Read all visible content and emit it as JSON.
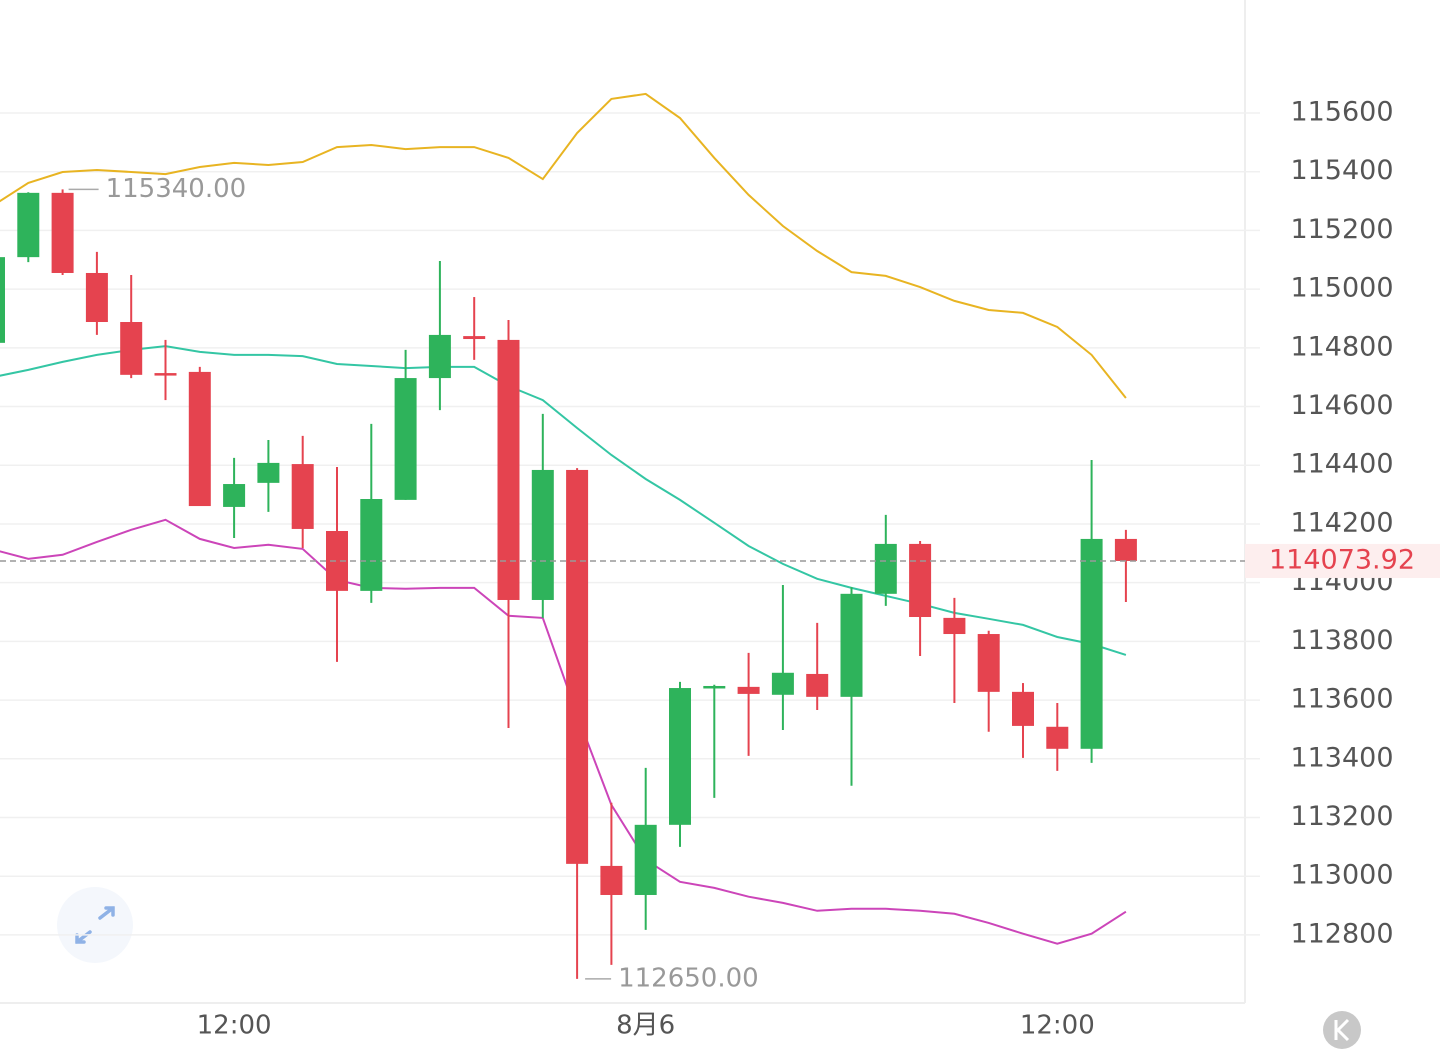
{
  "chart_data": {
    "type": "candlestick",
    "categories": [
      null,
      null,
      null,
      null,
      null,
      null,
      null,
      "12:00",
      null,
      null,
      null,
      null,
      null,
      null,
      null,
      null,
      null,
      null,
      null,
      "8月6",
      null,
      null,
      null,
      null,
      null,
      null,
      null,
      null,
      null,
      null,
      null,
      "12:00",
      null,
      null
    ],
    "open": [
      114817,
      115109,
      115328,
      115055,
      114888,
      114714,
      114718,
      114258,
      114340,
      114404,
      114176,
      113972,
      114282,
      114697,
      114840,
      114827,
      113941,
      114384,
      113035,
      112936,
      113175,
      113641,
      113645,
      113618,
      113689,
      113611,
      113962,
      114132,
      113880,
      113825,
      113628,
      113509,
      113434,
      114149
    ],
    "high": [
      115150,
      115330,
      115340,
      115127,
      115048,
      114827,
      114735,
      114425,
      114486,
      114500,
      114394,
      114541,
      114793,
      115096,
      114973,
      114895,
      114575,
      114390,
      113250,
      113369,
      113662,
      113652,
      113761,
      113992,
      113863,
      113985,
      114231,
      114142,
      113948,
      113836,
      113658,
      113590,
      114418,
      114180
    ],
    "low": [
      114780,
      115092,
      115048,
      114844,
      114697,
      114622,
      114261,
      114152,
      114241,
      114118,
      113730,
      113931,
      114282,
      114588,
      114759,
      113505,
      113880,
      112650,
      112698,
      112817,
      113100,
      113267,
      113410,
      113498,
      113566,
      113308,
      113921,
      113750,
      113590,
      113492,
      113403,
      113359,
      113386,
      113934
    ],
    "close": [
      115109,
      115328,
      115055,
      114888,
      114708,
      114710,
      114261,
      114336,
      114408,
      114183,
      113972,
      114285,
      114697,
      114844,
      114830,
      113941,
      114384,
      113042,
      112936,
      113175,
      113641,
      113648,
      113621,
      113693,
      113611,
      113962,
      114132,
      113883,
      113825,
      113628,
      113512,
      113434,
      114149,
      114073.92
    ],
    "up_color": "#2eb35b",
    "down_color": "#e5434f",
    "bands": [
      {
        "color": "#e8b422",
        "values": [
          115287,
          115362,
          115399,
          115406,
          115399,
          115392,
          115416,
          115430,
          115423,
          115433,
          115484,
          115491,
          115477,
          115484,
          115484,
          115447,
          115375,
          115532,
          115648,
          115665,
          115583,
          115447,
          115321,
          115215,
          115130,
          115058,
          115045,
          115007,
          114960,
          114929,
          114919,
          114871,
          114776,
          114629
        ]
      },
      {
        "color": "#34c6a4",
        "values": [
          114701,
          114725,
          114752,
          114776,
          114793,
          114806,
          114786,
          114776,
          114776,
          114772,
          114745,
          114738,
          114731,
          114735,
          114735,
          114670,
          114622,
          114527,
          114435,
          114353,
          114282,
          114204,
          114125,
          114064,
          114013,
          113982,
          113955,
          113928,
          113897,
          113877,
          113856,
          113815,
          113791,
          113754
        ]
      },
      {
        "color": "#cc45b9",
        "values": [
          114112,
          114081,
          114095,
          114139,
          114180,
          114214,
          114149,
          114118,
          114129,
          114115,
          114009,
          113982,
          113979,
          113982,
          113982,
          113887,
          113880,
          113550,
          113243,
          113056,
          112981,
          112960,
          112930,
          112909,
          112882,
          112889,
          112889,
          112882,
          112872,
          112841,
          112804,
          112770,
          112804,
          112879
        ]
      }
    ],
    "ylim": [
      112568,
      115985
    ],
    "yticks": [
      112800,
      113000,
      113200,
      113400,
      113600,
      113800,
      114000,
      114200,
      114400,
      114600,
      114800,
      115000,
      115200,
      115400,
      115600
    ],
    "grid": true,
    "last_price": 114073.92,
    "max_label": {
      "value": 115340,
      "label": "115340.00"
    },
    "min_label": {
      "value": 112650,
      "label": "112650.00"
    }
  }
}
